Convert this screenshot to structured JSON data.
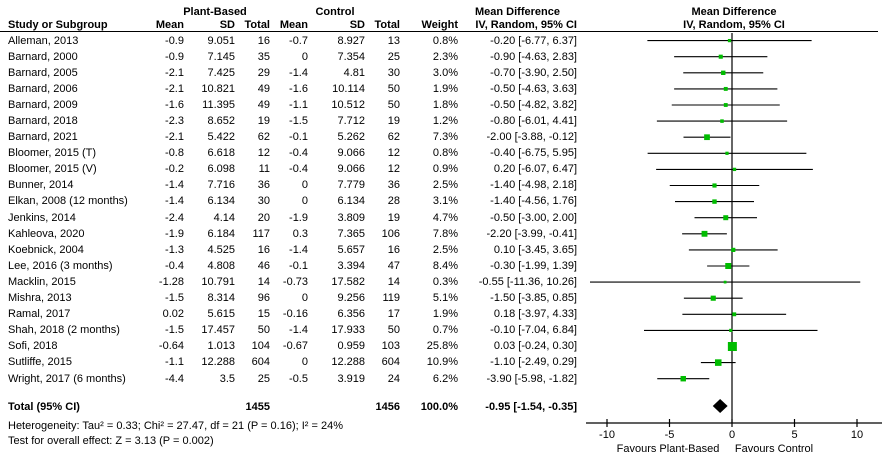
{
  "header": {
    "group1": "Plant-Based",
    "group2": "Control",
    "study_col": "Study or Subgroup",
    "mean": "Mean",
    "sd": "SD",
    "total": "Total",
    "weight": "Weight",
    "md_title": "Mean Difference",
    "md_subtitle": "IV, Random, 95% CI"
  },
  "footer": {
    "heterogeneity": "Heterogeneity: Tau² = 0.33; Chi² = 27.47, df = 21 (P = 0.16); I² = 24%",
    "overall_effect": "Test for overall effect: Z = 3.13 (P = 0.002)"
  },
  "chart_data": {
    "type": "forest",
    "effect_measure": "Mean Difference",
    "method": "IV, Random, 95% CI",
    "marker_color": "#00bc00",
    "axis": {
      "ticks": [
        -10,
        -5,
        0,
        5,
        10
      ],
      "xlim": [
        -11.4,
        11.9
      ],
      "favours_left": "Favours Plant-Based",
      "favours_right": "Favours Control"
    },
    "studies": [
      {
        "name": "Alleman, 2013",
        "pb_mean": "-0.9",
        "pb_sd": "9.051",
        "pb_total": "16",
        "c_mean": "-0.7",
        "c_sd": "8.927",
        "c_total": "13",
        "weight": "0.8%",
        "md": -0.2,
        "ci_low": -6.77,
        "ci_high": 6.37,
        "ci_label": "-0.20 [-6.77, 6.37]"
      },
      {
        "name": "Barnard, 2000",
        "pb_mean": "-0.9",
        "pb_sd": "7.145",
        "pb_total": "35",
        "c_mean": "0",
        "c_sd": "7.354",
        "c_total": "25",
        "weight": "2.3%",
        "md": -0.9,
        "ci_low": -4.63,
        "ci_high": 2.83,
        "ci_label": "-0.90 [-4.63, 2.83]"
      },
      {
        "name": "Barnard, 2005",
        "pb_mean": "-2.1",
        "pb_sd": "7.425",
        "pb_total": "29",
        "c_mean": "-1.4",
        "c_sd": "4.81",
        "c_total": "30",
        "weight": "3.0%",
        "md": -0.7,
        "ci_low": -3.9,
        "ci_high": 2.5,
        "ci_label": "-0.70 [-3.90, 2.50]"
      },
      {
        "name": "Barnard, 2006",
        "pb_mean": "-2.1",
        "pb_sd": "10.821",
        "pb_total": "49",
        "c_mean": "-1.6",
        "c_sd": "10.114",
        "c_total": "50",
        "weight": "1.9%",
        "md": -0.5,
        "ci_low": -4.63,
        "ci_high": 3.63,
        "ci_label": "-0.50 [-4.63, 3.63]"
      },
      {
        "name": "Barnard, 2009",
        "pb_mean": "-1.6",
        "pb_sd": "11.395",
        "pb_total": "49",
        "c_mean": "-1.1",
        "c_sd": "10.512",
        "c_total": "50",
        "weight": "1.8%",
        "md": -0.5,
        "ci_low": -4.82,
        "ci_high": 3.82,
        "ci_label": "-0.50 [-4.82, 3.82]"
      },
      {
        "name": "Barnard, 2018",
        "pb_mean": "-2.3",
        "pb_sd": "8.652",
        "pb_total": "19",
        "c_mean": "-1.5",
        "c_sd": "7.712",
        "c_total": "19",
        "weight": "1.2%",
        "md": -0.8,
        "ci_low": -6.01,
        "ci_high": 4.41,
        "ci_label": "-0.80 [-6.01, 4.41]"
      },
      {
        "name": "Barnard, 2021",
        "pb_mean": "-2.1",
        "pb_sd": "5.422",
        "pb_total": "62",
        "c_mean": "-0.1",
        "c_sd": "5.262",
        "c_total": "62",
        "weight": "7.3%",
        "md": -2.0,
        "ci_low": -3.88,
        "ci_high": -0.12,
        "ci_label": "-2.00 [-3.88, -0.12]"
      },
      {
        "name": "Bloomer, 2015 (T)",
        "pb_mean": "-0.8",
        "pb_sd": "6.618",
        "pb_total": "12",
        "c_mean": "-0.4",
        "c_sd": "9.066",
        "c_total": "12",
        "weight": "0.8%",
        "md": -0.4,
        "ci_low": -6.75,
        "ci_high": 5.95,
        "ci_label": "-0.40 [-6.75, 5.95]"
      },
      {
        "name": "Bloomer, 2015 (V)",
        "pb_mean": "-0.2",
        "pb_sd": "6.098",
        "pb_total": "11",
        "c_mean": "-0.4",
        "c_sd": "9.066",
        "c_total": "12",
        "weight": "0.9%",
        "md": 0.2,
        "ci_low": -6.07,
        "ci_high": 6.47,
        "ci_label": "0.20 [-6.07, 6.47]"
      },
      {
        "name": "Bunner, 2014",
        "pb_mean": "-1.4",
        "pb_sd": "7.716",
        "pb_total": "36",
        "c_mean": "0",
        "c_sd": "7.779",
        "c_total": "36",
        "weight": "2.5%",
        "md": -1.4,
        "ci_low": -4.98,
        "ci_high": 2.18,
        "ci_label": "-1.40 [-4.98, 2.18]"
      },
      {
        "name": "Elkan, 2008 (12 months)",
        "pb_mean": "-1.4",
        "pb_sd": "6.134",
        "pb_total": "30",
        "c_mean": "0",
        "c_sd": "6.134",
        "c_total": "28",
        "weight": "3.1%",
        "md": -1.4,
        "ci_low": -4.56,
        "ci_high": 1.76,
        "ci_label": "-1.40 [-4.56, 1.76]"
      },
      {
        "name": "Jenkins, 2014",
        "pb_mean": "-2.4",
        "pb_sd": "4.14",
        "pb_total": "20",
        "c_mean": "-1.9",
        "c_sd": "3.809",
        "c_total": "19",
        "weight": "4.7%",
        "md": -0.5,
        "ci_low": -3.0,
        "ci_high": 2.0,
        "ci_label": "-0.50 [-3.00, 2.00]"
      },
      {
        "name": "Kahleova, 2020",
        "pb_mean": "-1.9",
        "pb_sd": "6.184",
        "pb_total": "117",
        "c_mean": "0.3",
        "c_sd": "7.365",
        "c_total": "106",
        "weight": "7.8%",
        "md": -2.2,
        "ci_low": -3.99,
        "ci_high": -0.41,
        "ci_label": "-2.20 [-3.99, -0.41]"
      },
      {
        "name": "Koebnick, 2004",
        "pb_mean": "-1.3",
        "pb_sd": "4.525",
        "pb_total": "16",
        "c_mean": "-1.4",
        "c_sd": "5.657",
        "c_total": "16",
        "weight": "2.5%",
        "md": 0.1,
        "ci_low": -3.45,
        "ci_high": 3.65,
        "ci_label": "0.10 [-3.45, 3.65]"
      },
      {
        "name": "Lee, 2016 (3 months)",
        "pb_mean": "-0.4",
        "pb_sd": "4.808",
        "pb_total": "46",
        "c_mean": "-0.1",
        "c_sd": "3.394",
        "c_total": "47",
        "weight": "8.4%",
        "md": -0.3,
        "ci_low": -1.99,
        "ci_high": 1.39,
        "ci_label": "-0.30 [-1.99, 1.39]"
      },
      {
        "name": "Macklin, 2015",
        "pb_mean": "-1.28",
        "pb_sd": "10.791",
        "pb_total": "14",
        "c_mean": "-0.73",
        "c_sd": "17.582",
        "c_total": "14",
        "weight": "0.3%",
        "md": -0.55,
        "ci_low": -11.36,
        "ci_high": 10.26,
        "ci_label": "-0.55 [-11.36, 10.26]"
      },
      {
        "name": "Mishra, 2013",
        "pb_mean": "-1.5",
        "pb_sd": "8.314",
        "pb_total": "96",
        "c_mean": "0",
        "c_sd": "9.256",
        "c_total": "119",
        "weight": "5.1%",
        "md": -1.5,
        "ci_low": -3.85,
        "ci_high": 0.85,
        "ci_label": "-1.50 [-3.85, 0.85]"
      },
      {
        "name": "Ramal, 2017",
        "pb_mean": "0.02",
        "pb_sd": "5.615",
        "pb_total": "15",
        "c_mean": "-0.16",
        "c_sd": "6.356",
        "c_total": "17",
        "weight": "1.9%",
        "md": 0.18,
        "ci_low": -3.97,
        "ci_high": 4.33,
        "ci_label": "0.18 [-3.97, 4.33]"
      },
      {
        "name": "Shah, 2018 (2 months)",
        "pb_mean": "-1.5",
        "pb_sd": "17.457",
        "pb_total": "50",
        "c_mean": "-1.4",
        "c_sd": "17.933",
        "c_total": "50",
        "weight": "0.7%",
        "md": -0.1,
        "ci_low": -7.04,
        "ci_high": 6.84,
        "ci_label": "-0.10 [-7.04, 6.84]"
      },
      {
        "name": "Sofi, 2018",
        "pb_mean": "-0.64",
        "pb_sd": "1.013",
        "pb_total": "104",
        "c_mean": "-0.67",
        "c_sd": "0.959",
        "c_total": "103",
        "weight": "25.8%",
        "md": 0.03,
        "ci_low": -0.24,
        "ci_high": 0.3,
        "ci_label": "0.03 [-0.24, 0.30]"
      },
      {
        "name": "Sutliffe, 2015",
        "pb_mean": "-1.1",
        "pb_sd": "12.288",
        "pb_total": "604",
        "c_mean": "0",
        "c_sd": "12.288",
        "c_total": "604",
        "weight": "10.9%",
        "md": -1.1,
        "ci_low": -2.49,
        "ci_high": 0.29,
        "ci_label": "-1.10 [-2.49, 0.29]"
      },
      {
        "name": "Wright, 2017 (6 months)",
        "pb_mean": "-4.4",
        "pb_sd": "3.5",
        "pb_total": "25",
        "c_mean": "-0.5",
        "c_sd": "3.919",
        "c_total": "24",
        "weight": "6.2%",
        "md": -3.9,
        "ci_low": -5.98,
        "ci_high": -1.82,
        "ci_label": "-3.90 [-5.98, -1.82]"
      }
    ],
    "total": {
      "label": "Total (95% CI)",
      "pb_total": "1455",
      "c_total": "1456",
      "weight": "100.0%",
      "md": -0.95,
      "ci_low": -1.54,
      "ci_high": -0.35,
      "ci_label": "-0.95 [-1.54, -0.35]"
    }
  }
}
